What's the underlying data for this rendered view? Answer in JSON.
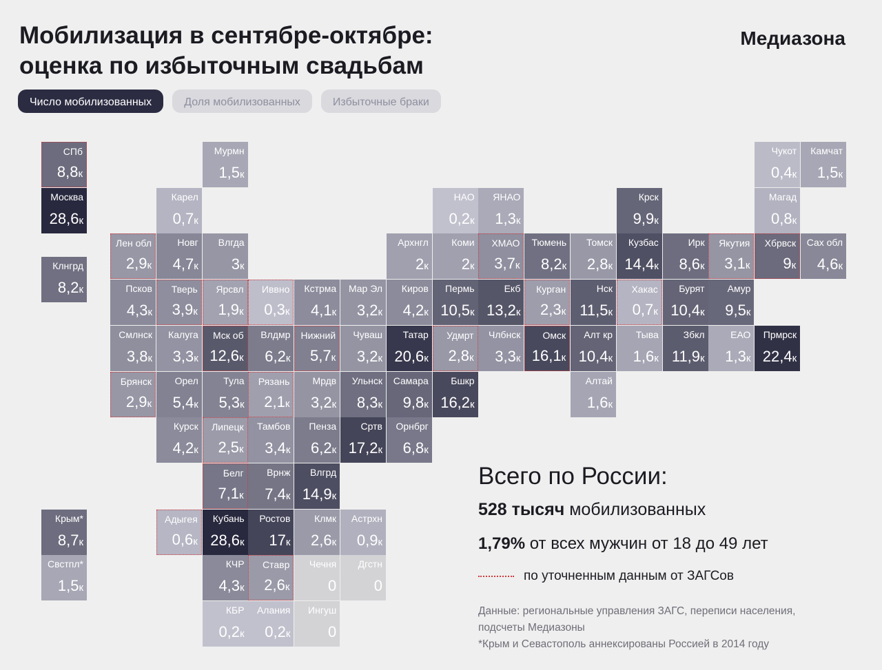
{
  "header": {
    "title_lines": [
      "Мобилизация в сентябре-октябре:",
      "оценка по избыточным свадьбам"
    ],
    "brand": "Медиазона"
  },
  "tabs": [
    "Число мобилизованных",
    "Доля мобилизованных",
    "Избыточные браки"
  ],
  "tiles": [
    {
      "name": "СПб",
      "value": 8.8,
      "value_label": "8,8",
      "unit": "к",
      "refined": true
    },
    {
      "name": "Мурмн",
      "value": 1.5,
      "value_label": "1,5",
      "unit": "к",
      "refined": false
    },
    {
      "name": "Чукот",
      "value": 0.4,
      "value_label": "0,4",
      "unit": "к",
      "refined": false
    },
    {
      "name": "Камчат",
      "value": 1.5,
      "value_label": "1,5",
      "unit": "к",
      "refined": false
    },
    {
      "name": "Москва",
      "value": 28.6,
      "value_label": "28,6",
      "unit": "к",
      "refined": false
    },
    {
      "name": "Карел",
      "value": 0.7,
      "value_label": "0,7",
      "unit": "к",
      "refined": false
    },
    {
      "name": "НАО",
      "value": 0.2,
      "value_label": "0,2",
      "unit": "к",
      "refined": false
    },
    {
      "name": "ЯНАО",
      "value": 1.3,
      "value_label": "1,3",
      "unit": "к",
      "refined": false
    },
    {
      "name": "Крск",
      "value": 9.9,
      "value_label": "9,9",
      "unit": "к",
      "refined": false
    },
    {
      "name": "Магад",
      "value": 0.8,
      "value_label": "0,8",
      "unit": "к",
      "refined": false
    },
    {
      "name": "Лен обл",
      "value": 2.9,
      "value_label": "2,9",
      "unit": "к",
      "refined": true
    },
    {
      "name": "Новг",
      "value": 4.7,
      "value_label": "4,7",
      "unit": "к",
      "refined": false
    },
    {
      "name": "Влгда",
      "value": 3,
      "value_label": "3",
      "unit": "к",
      "refined": false
    },
    {
      "name": "Архнгл",
      "value": 2,
      "value_label": "2",
      "unit": "к",
      "refined": false
    },
    {
      "name": "Коми",
      "value": 2,
      "value_label": "2",
      "unit": "к",
      "refined": false
    },
    {
      "name": "ХМАО",
      "value": 3.7,
      "value_label": "3,7",
      "unit": "к",
      "refined": true
    },
    {
      "name": "Тюмень",
      "value": 8.2,
      "value_label": "8,2",
      "unit": "к",
      "refined": false
    },
    {
      "name": "Томск",
      "value": 2.8,
      "value_label": "2,8",
      "unit": "к",
      "refined": false
    },
    {
      "name": "Кузбас",
      "value": 14.4,
      "value_label": "14,4",
      "unit": "к",
      "refined": false
    },
    {
      "name": "Ирк",
      "value": 8.6,
      "value_label": "8,6",
      "unit": "к",
      "refined": false
    },
    {
      "name": "Якутия",
      "value": 3.1,
      "value_label": "3,1",
      "unit": "к",
      "refined": true
    },
    {
      "name": "Хбрвск",
      "value": 9,
      "value_label": "9",
      "unit": "к",
      "refined": true
    },
    {
      "name": "Сах обл",
      "value": 4.6,
      "value_label": "4,6",
      "unit": "к",
      "refined": false
    },
    {
      "name": "Клнгрд",
      "value": 8.2,
      "value_label": "8,2",
      "unit": "к",
      "refined": false
    },
    {
      "name": "Псков",
      "value": 4.3,
      "value_label": "4,3",
      "unit": "к",
      "refined": false
    },
    {
      "name": "Тверь",
      "value": 3.9,
      "value_label": "3,9",
      "unit": "к",
      "refined": true
    },
    {
      "name": "Ярсвл",
      "value": 1.9,
      "value_label": "1,9",
      "unit": "к",
      "refined": true
    },
    {
      "name": "Иввно",
      "value": 0.3,
      "value_label": "0,3",
      "unit": "к",
      "refined": true
    },
    {
      "name": "Кстрма",
      "value": 4.1,
      "value_label": "4,1",
      "unit": "к",
      "refined": false
    },
    {
      "name": "Мар Эл",
      "value": 3.2,
      "value_label": "3,2",
      "unit": "к",
      "refined": false
    },
    {
      "name": "Киров",
      "value": 4.2,
      "value_label": "4,2",
      "unit": "к",
      "refined": false
    },
    {
      "name": "Пермь",
      "value": 10.5,
      "value_label": "10,5",
      "unit": "к",
      "refined": false
    },
    {
      "name": "Екб",
      "value": 13.2,
      "value_label": "13,2",
      "unit": "к",
      "refined": false
    },
    {
      "name": "Курган",
      "value": 2.3,
      "value_label": "2,3",
      "unit": "к",
      "refined": true
    },
    {
      "name": "Нск",
      "value": 11.5,
      "value_label": "11,5",
      "unit": "к",
      "refined": false
    },
    {
      "name": "Хакас",
      "value": 0.7,
      "value_label": "0,7",
      "unit": "к",
      "refined": true
    },
    {
      "name": "Бурят",
      "value": 10.4,
      "value_label": "10,4",
      "unit": "к",
      "refined": false
    },
    {
      "name": "Амур",
      "value": 9.5,
      "value_label": "9,5",
      "unit": "к",
      "refined": false
    },
    {
      "name": "Смлнск",
      "value": 3.8,
      "value_label": "3,8",
      "unit": "к",
      "refined": false
    },
    {
      "name": "Калуга",
      "value": 3.3,
      "value_label": "3,3",
      "unit": "к",
      "refined": false
    },
    {
      "name": "Мск об",
      "value": 12.6,
      "value_label": "12,6",
      "unit": "к",
      "refined": true
    },
    {
      "name": "Влдмр",
      "value": 6.2,
      "value_label": "6,2",
      "unit": "к",
      "refined": false
    },
    {
      "name": "Нижний",
      "value": 5.7,
      "value_label": "5,7",
      "unit": "к",
      "refined": true
    },
    {
      "name": "Чуваш",
      "value": 3.2,
      "value_label": "3,2",
      "unit": "к",
      "refined": false
    },
    {
      "name": "Татар",
      "value": 20.6,
      "value_label": "20,6",
      "unit": "к",
      "refined": false
    },
    {
      "name": "Удмрт",
      "value": 2.8,
      "value_label": "2,8",
      "unit": "к",
      "refined": true
    },
    {
      "name": "Члбнск",
      "value": 3.3,
      "value_label": "3,3",
      "unit": "к",
      "refined": false
    },
    {
      "name": "Омск",
      "value": 16.1,
      "value_label": "16,1",
      "unit": "к",
      "refined": true
    },
    {
      "name": "Алт кр",
      "value": 10.4,
      "value_label": "10,4",
      "unit": "к",
      "refined": false
    },
    {
      "name": "Тыва",
      "value": 1.6,
      "value_label": "1,6",
      "unit": "к",
      "refined": false
    },
    {
      "name": "Збкл",
      "value": 11.9,
      "value_label": "11,9",
      "unit": "к",
      "refined": false
    },
    {
      "name": "ЕАО",
      "value": 1.3,
      "value_label": "1,3",
      "unit": "к",
      "refined": false
    },
    {
      "name": "Прмрск",
      "value": 22.4,
      "value_label": "22,4",
      "unit": "к",
      "refined": false
    },
    {
      "name": "Брянск",
      "value": 2.9,
      "value_label": "2,9",
      "unit": "к",
      "refined": true
    },
    {
      "name": "Орел",
      "value": 5.4,
      "value_label": "5,4",
      "unit": "к",
      "refined": false
    },
    {
      "name": "Тула",
      "value": 5.3,
      "value_label": "5,3",
      "unit": "к",
      "refined": false
    },
    {
      "name": "Рязань",
      "value": 2.1,
      "value_label": "2,1",
      "unit": "к",
      "refined": true
    },
    {
      "name": "Мрдв",
      "value": 3.2,
      "value_label": "3,2",
      "unit": "к",
      "refined": false
    },
    {
      "name": "Ульнск",
      "value": 8.3,
      "value_label": "8,3",
      "unit": "к",
      "refined": false
    },
    {
      "name": "Самара",
      "value": 9.8,
      "value_label": "9,8",
      "unit": "к",
      "refined": false
    },
    {
      "name": "Бшкр",
      "value": 16.2,
      "value_label": "16,2",
      "unit": "к",
      "refined": false
    },
    {
      "name": "Алтай",
      "value": 1.6,
      "value_label": "1,6",
      "unit": "к",
      "refined": false
    },
    {
      "name": "Курск",
      "value": 4.2,
      "value_label": "4,2",
      "unit": "к",
      "refined": false
    },
    {
      "name": "Липецк",
      "value": 2.5,
      "value_label": "2,5",
      "unit": "к",
      "refined": true
    },
    {
      "name": "Тамбов",
      "value": 3.4,
      "value_label": "3,4",
      "unit": "к",
      "refined": false
    },
    {
      "name": "Пенза",
      "value": 6.2,
      "value_label": "6,2",
      "unit": "к",
      "refined": false
    },
    {
      "name": "Сртв",
      "value": 17.2,
      "value_label": "17,2",
      "unit": "к",
      "refined": false
    },
    {
      "name": "Орнбрг",
      "value": 6.8,
      "value_label": "6,8",
      "unit": "к",
      "refined": false
    },
    {
      "name": "Белг",
      "value": 7.1,
      "value_label": "7,1",
      "unit": "к",
      "refined": true
    },
    {
      "name": "Врнж",
      "value": 7.4,
      "value_label": "7,4",
      "unit": "к",
      "refined": false
    },
    {
      "name": "Влгрд",
      "value": 14.9,
      "value_label": "14,9",
      "unit": "к",
      "refined": false
    },
    {
      "name": "Крым*",
      "value": 8.7,
      "value_label": "8,7",
      "unit": "к",
      "refined": false
    },
    {
      "name": "Адыгея",
      "value": 0.6,
      "value_label": "0,6",
      "unit": "к",
      "refined": true
    },
    {
      "name": "Кубань",
      "value": 28.6,
      "value_label": "28,6",
      "unit": "к",
      "refined": false
    },
    {
      "name": "Ростов",
      "value": 17,
      "value_label": "17",
      "unit": "к",
      "refined": false
    },
    {
      "name": "Клмк",
      "value": 2.6,
      "value_label": "2,6",
      "unit": "к",
      "refined": false
    },
    {
      "name": "Астрхн",
      "value": 0.9,
      "value_label": "0,9",
      "unit": "к",
      "refined": false
    },
    {
      "name": "Свстпл*",
      "value": 1.5,
      "value_label": "1,5",
      "unit": "к",
      "refined": false
    },
    {
      "name": "КЧР",
      "value": 4.3,
      "value_label": "4,3",
      "unit": "к",
      "refined": false
    },
    {
      "name": "Ставр",
      "value": 2.6,
      "value_label": "2,6",
      "unit": "к",
      "refined": true
    },
    {
      "name": "Чечня",
      "value": 0,
      "refined": false
    },
    {
      "name": "Дгстн",
      "value": 0,
      "refined": false
    },
    {
      "name": "КБР",
      "value": 0.2,
      "value_label": "0,2",
      "unit": "к",
      "refined": false
    },
    {
      "name": "Алания",
      "value": 0.2,
      "value_label": "0,2",
      "unit": "к",
      "refined": false
    },
    {
      "name": "Ингуш",
      "value": 0,
      "refined": false
    }
  ],
  "summary": {
    "heading": "Всего по России:",
    "total_bold": "528 тысяч",
    "total_rest": "мобилизованных",
    "share_bold": "1,79%",
    "share_rest": "от всех мужчин от 18 до 49 лет",
    "legend_label": "по уточненным данным от ЗАГСов"
  },
  "notes": [
    "Данные: региональные управления ЗАГС, переписи населения,",
    "подсчеты Медиазоны",
    "*Крым и Севастополь аннексированы Россией в 2014 году"
  ]
}
